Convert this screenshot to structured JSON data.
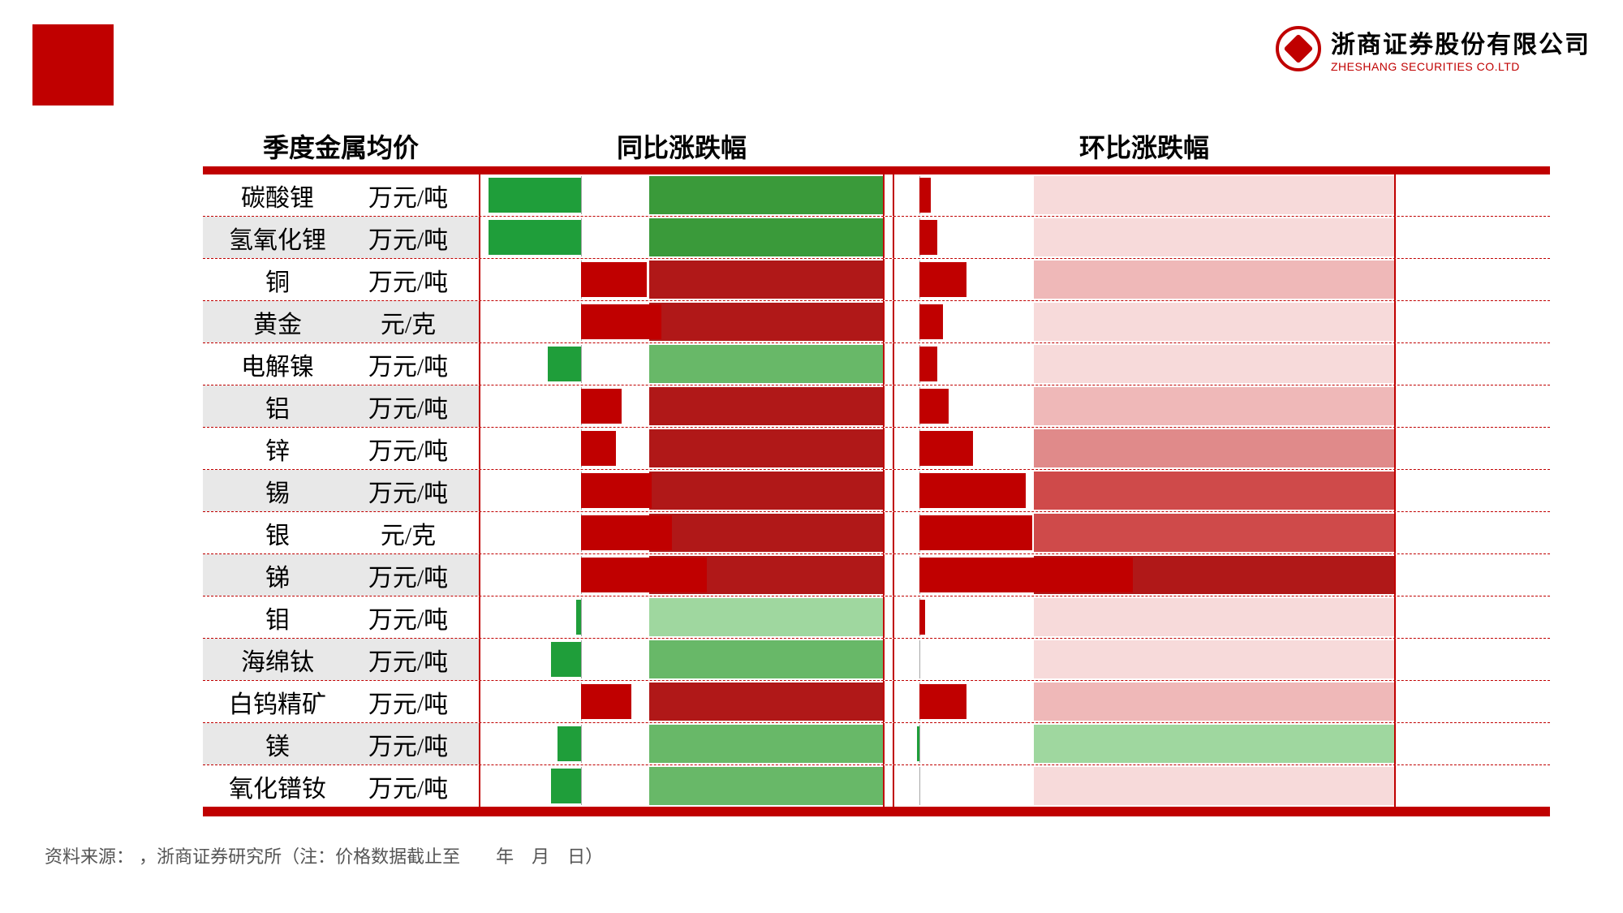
{
  "branding": {
    "company_cn": "浙商证券股份有限公司",
    "company_en": "ZHESHANG SECURITIES CO.LTD"
  },
  "colors": {
    "brand_red": "#c00000",
    "bar_green": "#1f9e3a",
    "bar_red": "#c00000",
    "heat_green_light": "#9fd79f",
    "heat_green_mid": "#68b868",
    "heat_green_dark": "#3a9a3a",
    "heat_red_faint": "#f7dada",
    "heat_red_light": "#efb8b8",
    "heat_red_mid": "#e08a8a",
    "heat_red_strong": "#cf4a4a",
    "heat_red_dark": "#b01818",
    "stripe_bg": "#e8e8e8"
  },
  "headers": {
    "price": "季度金属均价",
    "yoy": "同比涨跌幅",
    "qoq": "环比涨跌幅"
  },
  "yoy_scale": {
    "min": -60,
    "max": 60,
    "zero_frac": 0.25,
    "neg_frac": 0.25,
    "pos_frac": 0.75
  },
  "qoq_scale": {
    "min": -10,
    "max": 40,
    "zero_frac": 0.05,
    "neg_frac": 0.05,
    "pos_frac": 0.95
  },
  "heat_width_frac_yoy": 0.58,
  "heat_width_frac_qoq": 0.72,
  "rows": [
    {
      "metal": "碳酸锂",
      "unit": "万元/吨",
      "yoy_val": -55,
      "yoy_heat": "heat_green_dark",
      "qoq_val": 1.0,
      "qoq_heat": "heat_red_faint"
    },
    {
      "metal": "氢氧化锂",
      "unit": "万元/吨",
      "yoy_val": -55,
      "yoy_heat": "heat_green_dark",
      "qoq_val": 1.5,
      "qoq_heat": "heat_red_faint"
    },
    {
      "metal": "铜",
      "unit": "万元/吨",
      "yoy_val": 13,
      "yoy_heat": "heat_red_dark",
      "qoq_val": 4.0,
      "qoq_heat": "heat_red_light"
    },
    {
      "metal": "黄金",
      "unit": "元/克",
      "yoy_val": 16,
      "yoy_heat": "heat_red_dark",
      "qoq_val": 2.0,
      "qoq_heat": "heat_red_faint"
    },
    {
      "metal": "电解镍",
      "unit": "万元/吨",
      "yoy_val": -20,
      "yoy_heat": "heat_green_mid",
      "qoq_val": 1.5,
      "qoq_heat": "heat_red_faint"
    },
    {
      "metal": "铝",
      "unit": "万元/吨",
      "yoy_val": 8,
      "yoy_heat": "heat_red_dark",
      "qoq_val": 2.5,
      "qoq_heat": "heat_red_light"
    },
    {
      "metal": "锌",
      "unit": "万元/吨",
      "yoy_val": 7,
      "yoy_heat": "heat_red_dark",
      "qoq_val": 4.5,
      "qoq_heat": "heat_red_mid"
    },
    {
      "metal": "锡",
      "unit": "万元/吨",
      "yoy_val": 14,
      "yoy_heat": "heat_red_dark",
      "qoq_val": 9.0,
      "qoq_heat": "heat_red_strong"
    },
    {
      "metal": "银",
      "unit": "元/克",
      "yoy_val": 18,
      "yoy_heat": "heat_red_dark",
      "qoq_val": 9.5,
      "qoq_heat": "heat_red_strong"
    },
    {
      "metal": "锑",
      "unit": "万元/吨",
      "yoy_val": 25,
      "yoy_heat": "heat_red_dark",
      "qoq_val": 18.0,
      "qoq_heat": "heat_red_dark"
    },
    {
      "metal": "钼",
      "unit": "万元/吨",
      "yoy_val": -3,
      "yoy_heat": "heat_green_light",
      "qoq_val": 0.5,
      "qoq_heat": "heat_red_faint"
    },
    {
      "metal": "海绵钛",
      "unit": "万元/吨",
      "yoy_val": -18,
      "yoy_heat": "heat_green_mid",
      "qoq_val": 0.0,
      "qoq_heat": "heat_red_faint"
    },
    {
      "metal": "白钨精矿",
      "unit": "万元/吨",
      "yoy_val": 10,
      "yoy_heat": "heat_red_dark",
      "qoq_val": 4.0,
      "qoq_heat": "heat_red_light"
    },
    {
      "metal": "镁",
      "unit": "万元/吨",
      "yoy_val": -14,
      "yoy_heat": "heat_green_mid",
      "qoq_val": -1.0,
      "qoq_heat": "heat_green_light"
    },
    {
      "metal": "氧化镨钕",
      "unit": "万元/吨",
      "yoy_val": -18,
      "yoy_heat": "heat_green_mid",
      "qoq_val": 0.0,
      "qoq_heat": "heat_red_faint"
    }
  ],
  "source_label": "资料来源：",
  "source_rest": "，浙商证券研究所（注：价格数据截止至  年 月 日）"
}
